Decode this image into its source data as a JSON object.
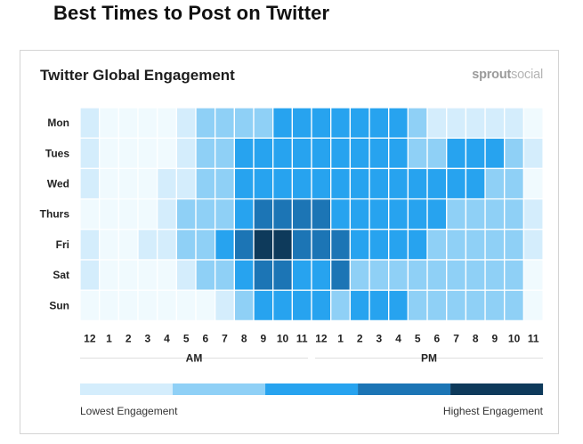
{
  "page": {
    "title": "Best Times to Post on Twitter"
  },
  "card": {
    "heading": "Twitter Global Engagement",
    "brand": {
      "sprout": "sprout",
      "social": "social"
    }
  },
  "colors": {
    "levels": [
      "#f0fafe",
      "#d4edfc",
      "#8fd0f6",
      "#27a3ef",
      "#1c75b5",
      "#0e3a5b"
    ]
  },
  "chart_data": {
    "type": "heatmap",
    "title": "Twitter Global Engagement",
    "rows": [
      "Mon",
      "Tues",
      "Wed",
      "Thurs",
      "Fri",
      "Sat",
      "Sun"
    ],
    "columns": [
      "12",
      "1",
      "2",
      "3",
      "4",
      "5",
      "6",
      "7",
      "8",
      "9",
      "10",
      "11",
      "12",
      "1",
      "2",
      "3",
      "4",
      "5",
      "6",
      "7",
      "8",
      "9",
      "10",
      "11"
    ],
    "column_groups": [
      {
        "label": "AM",
        "span": 12
      },
      {
        "label": "PM",
        "span": 12
      }
    ],
    "scale_levels": 5,
    "values": [
      [
        1,
        0,
        0,
        0,
        0,
        1,
        2,
        2,
        2,
        2,
        3,
        3,
        3,
        3,
        3,
        3,
        3,
        2,
        1,
        1,
        1,
        1,
        1,
        0
      ],
      [
        1,
        0,
        0,
        0,
        0,
        1,
        2,
        2,
        3,
        3,
        3,
        3,
        3,
        3,
        3,
        3,
        3,
        2,
        2,
        3,
        3,
        3,
        2,
        1
      ],
      [
        1,
        0,
        0,
        0,
        1,
        1,
        2,
        2,
        3,
        3,
        3,
        3,
        3,
        3,
        3,
        3,
        3,
        3,
        3,
        3,
        3,
        2,
        2,
        0
      ],
      [
        0,
        0,
        0,
        0,
        1,
        2,
        2,
        2,
        3,
        4,
        4,
        4,
        4,
        3,
        3,
        3,
        3,
        3,
        3,
        2,
        2,
        2,
        2,
        1
      ],
      [
        1,
        0,
        0,
        1,
        1,
        2,
        2,
        3,
        4,
        5,
        5,
        4,
        4,
        4,
        3,
        3,
        3,
        3,
        2,
        2,
        2,
        2,
        2,
        1
      ],
      [
        1,
        0,
        0,
        0,
        0,
        1,
        2,
        2,
        3,
        4,
        4,
        3,
        3,
        4,
        2,
        2,
        2,
        2,
        2,
        2,
        2,
        2,
        2,
        0
      ],
      [
        0,
        0,
        0,
        0,
        0,
        0,
        0,
        1,
        2,
        3,
        3,
        3,
        3,
        2,
        3,
        3,
        3,
        2,
        2,
        2,
        2,
        2,
        2,
        0
      ]
    ],
    "legend": {
      "low": "Lowest Engagement",
      "high": "Highest Engagement"
    }
  }
}
